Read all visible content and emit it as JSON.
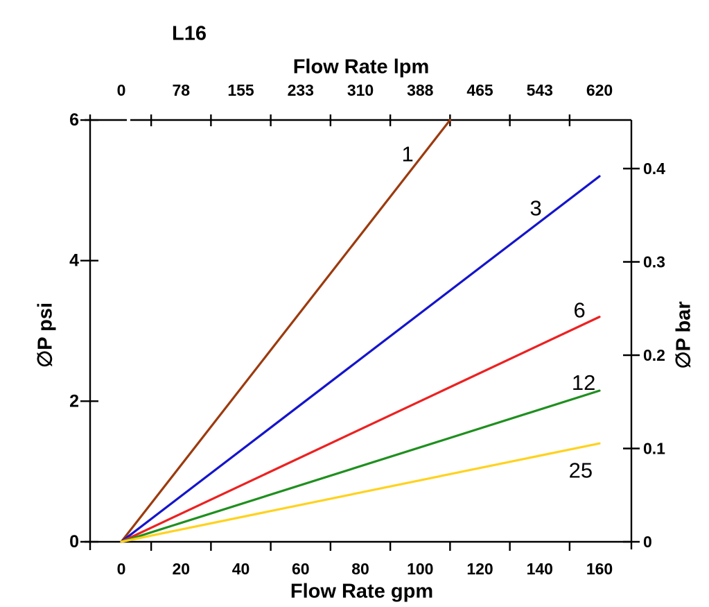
{
  "chart_data": {
    "type": "line",
    "title": "L16",
    "x_axis_bottom": {
      "label": "Flow Rate gpm",
      "tick_values": [
        0,
        20,
        40,
        60,
        80,
        100,
        120,
        140,
        160
      ],
      "tick_labels": [
        "0",
        "20",
        "40",
        "60",
        "80",
        "100",
        "120",
        "140",
        "160"
      ],
      "minor_ticks_between_labels": true
    },
    "x_axis_top": {
      "label": "Flow Rate lpm",
      "tick_labels": [
        "0",
        "78",
        "155",
        "233",
        "310",
        "388",
        "465",
        "543",
        "620"
      ],
      "aligned_with_bottom_ticks": true
    },
    "y_axis_left": {
      "label": "∅P psi",
      "tick_values": [
        0,
        2,
        4,
        6
      ],
      "tick_labels": [
        "0",
        "2",
        "4",
        "6"
      ],
      "range": [
        0,
        6
      ]
    },
    "y_axis_right": {
      "label": "∅P bar",
      "tick_labels": [
        "0",
        "0.1",
        "0.2",
        "0.3",
        "0.4"
      ]
    },
    "grid": false,
    "legend": "inline curve labels",
    "series": [
      {
        "name": "1",
        "color": "#9C3A0E",
        "points_gpm_psi": [
          [
            0,
            0
          ],
          [
            110,
            6.0
          ]
        ],
        "label_pos_gpm_psi": [
          95.8,
          5.52
        ]
      },
      {
        "name": "3",
        "color": "#1414CC",
        "points_gpm_psi": [
          [
            0,
            0
          ],
          [
            160,
            5.2
          ]
        ],
        "label_pos_gpm_psi": [
          138.7,
          4.75
        ]
      },
      {
        "name": "6",
        "color": "#EC2121",
        "points_gpm_psi": [
          [
            0,
            0
          ],
          [
            160,
            3.2
          ]
        ],
        "label_pos_gpm_psi": [
          153.3,
          3.3
        ]
      },
      {
        "name": "12",
        "color": "#1F8F1F",
        "points_gpm_psi": [
          [
            0,
            0
          ],
          [
            160,
            2.15
          ]
        ],
        "label_pos_gpm_psi": [
          154.7,
          2.27
        ]
      },
      {
        "name": "25",
        "color": "#FFD21E",
        "points_gpm_psi": [
          [
            0,
            0
          ],
          [
            160,
            1.4
          ]
        ],
        "label_pos_gpm_psi": [
          153.7,
          1.02
        ]
      }
    ],
    "colors": {
      "axis": "#000000",
      "text": "#000000",
      "background": "#ffffff"
    }
  }
}
